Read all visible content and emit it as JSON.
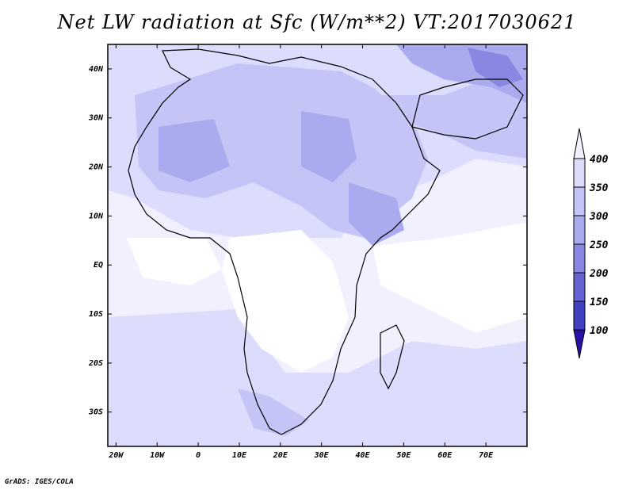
{
  "title": "Net LW radiation at Sfc (W/m**2) VT:2017030621",
  "credit": "GrADS: IGES/COLA",
  "map": {
    "lon_range": [
      -22,
      80
    ],
    "lat_range": [
      -37,
      45
    ],
    "lat_ticks": [
      {
        "value": 40,
        "label": "40N"
      },
      {
        "value": 30,
        "label": "30N"
      },
      {
        "value": 20,
        "label": "20N"
      },
      {
        "value": 10,
        "label": "10N"
      },
      {
        "value": 0,
        "label": "EQ"
      },
      {
        "value": -10,
        "label": "10S"
      },
      {
        "value": -20,
        "label": "20S"
      },
      {
        "value": -30,
        "label": "30S"
      }
    ],
    "lon_ticks": [
      {
        "value": -20,
        "label": "20W"
      },
      {
        "value": -10,
        "label": "10W"
      },
      {
        "value": 0,
        "label": "0"
      },
      {
        "value": 10,
        "label": "10E"
      },
      {
        "value": 20,
        "label": "20E"
      },
      {
        "value": 30,
        "label": "30E"
      },
      {
        "value": 40,
        "label": "40E"
      },
      {
        "value": 50,
        "label": "50E"
      },
      {
        "value": 60,
        "label": "60E"
      },
      {
        "value": 70,
        "label": "70E"
      }
    ]
  },
  "colorbar": {
    "levels": [
      {
        "label": "400",
        "value": 400
      },
      {
        "label": "350",
        "value": 350
      },
      {
        "label": "300",
        "value": 300
      },
      {
        "label": "250",
        "value": 250
      },
      {
        "label": "200",
        "value": 200
      },
      {
        "label": "150",
        "value": 150
      },
      {
        "label": "100",
        "value": 100
      }
    ],
    "colors": [
      "#f0f0ff",
      "#dcdcfc",
      "#c4c4f6",
      "#aaaaee",
      "#8888e2",
      "#6464d2",
      "#4040c0",
      "#2a10a8"
    ]
  }
}
